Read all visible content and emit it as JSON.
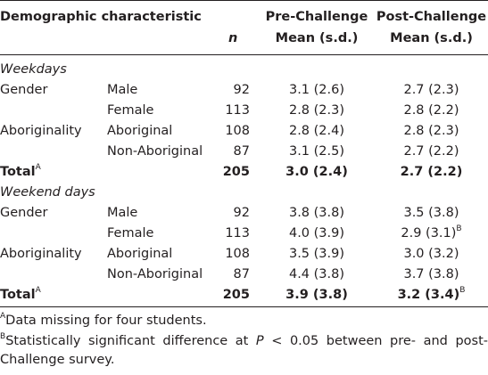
{
  "header": {
    "col1": "Demographic characteristic",
    "n": "n",
    "pre_line1": "Pre-Challenge",
    "pre_line2": "Mean (s.d.)",
    "post_line1": "Post-Challenge",
    "post_line2": "Mean (s.d.)"
  },
  "sections": [
    {
      "title": "Weekdays",
      "rows": [
        {
          "group": "Gender",
          "sub": "Male",
          "n": "92",
          "pre": "3.1 (2.6)",
          "post": "2.7 (2.3)",
          "post_sup": ""
        },
        {
          "group": "",
          "sub": "Female",
          "n": "113",
          "pre": "2.8 (2.3)",
          "post": "2.8 (2.2)",
          "post_sup": ""
        },
        {
          "group": "Aboriginality",
          "sub": "Aboriginal",
          "n": "108",
          "pre": "2.8 (2.4)",
          "post": "2.8 (2.3)",
          "post_sup": ""
        },
        {
          "group": "",
          "sub": "Non-Aboriginal",
          "n": "87",
          "pre": "3.1 (2.5)",
          "post": "2.7 (2.2)",
          "post_sup": ""
        }
      ],
      "total": {
        "label": "Total",
        "sup": "A",
        "n": "205",
        "pre": "3.0 (2.4)",
        "post": "2.7 (2.2)",
        "post_sup": ""
      }
    },
    {
      "title": "Weekend days",
      "rows": [
        {
          "group": "Gender",
          "sub": "Male",
          "n": "92",
          "pre": "3.8 (3.8)",
          "post": "3.5 (3.8)",
          "post_sup": ""
        },
        {
          "group": "",
          "sub": "Female",
          "n": "113",
          "pre": "4.0 (3.9)",
          "post": "2.9 (3.1)",
          "post_sup": "B"
        },
        {
          "group": "Aboriginality",
          "sub": "Aboriginal",
          "n": "108",
          "pre": "3.5 (3.9)",
          "post": "3.0 (3.2)",
          "post_sup": ""
        },
        {
          "group": "",
          "sub": "Non-Aboriginal",
          "n": "87",
          "pre": "4.4 (3.8)",
          "post": "3.7 (3.8)",
          "post_sup": ""
        }
      ],
      "total": {
        "label": "Total",
        "sup": "A",
        "n": "205",
        "pre": "3.9 (3.8)",
        "post": "3.2 (3.4)",
        "post_sup": "B"
      }
    }
  ],
  "footnotes": [
    {
      "mark": "A",
      "text": "Data missing for four students."
    },
    {
      "mark": "B",
      "text_before": "Statistically significant difference at ",
      "p": "P",
      "text_after": " < 0.05 between pre- and post-",
      "text_line2": "Challenge survey."
    }
  ]
}
